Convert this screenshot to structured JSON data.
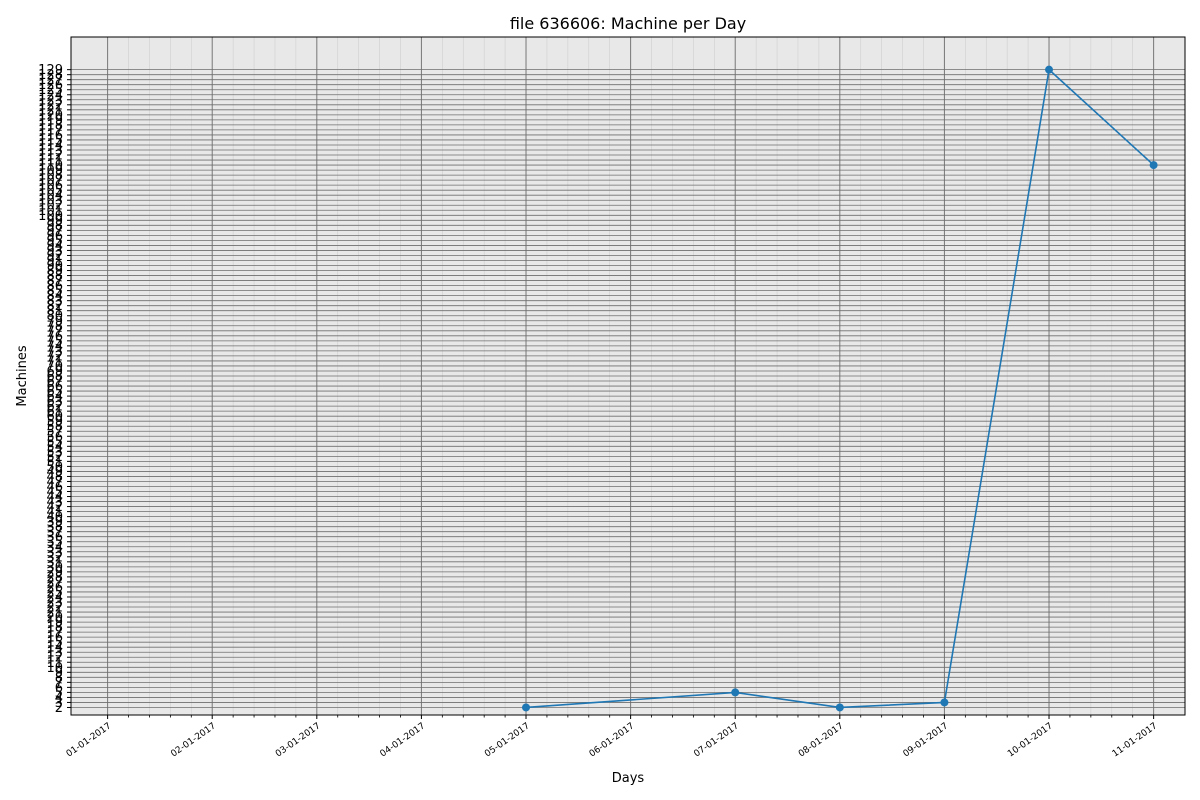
{
  "chart_data": {
    "type": "line",
    "title": "file 636606: Machine per Day",
    "xlabel": "Days",
    "ylabel": "Machines",
    "x_ticks": [
      "01-01-2017",
      "02-01-2017",
      "03-01-2017",
      "04-01-2017",
      "05-01-2017",
      "06-01-2017",
      "07-01-2017",
      "08-01-2017",
      "09-01-2017",
      "10-01-2017",
      "11-01-2017"
    ],
    "y_ticks": [
      2,
      3,
      4,
      5,
      6,
      7,
      8,
      9,
      10,
      11,
      12,
      13,
      14,
      15,
      16,
      17,
      18,
      19,
      20,
      21,
      22,
      23,
      24,
      25,
      26,
      27,
      28,
      29,
      30,
      31,
      32,
      33,
      34,
      35,
      36,
      37,
      38,
      39,
      40,
      41,
      42,
      43,
      44,
      45,
      46,
      47,
      48,
      49,
      50,
      51,
      52,
      53,
      54,
      55,
      56,
      57,
      58,
      59,
      60,
      61,
      62,
      63,
      64,
      65,
      66,
      67,
      68,
      69,
      70,
      71,
      72,
      73,
      74,
      75,
      76,
      77,
      78,
      79,
      80,
      81,
      82,
      83,
      84,
      85,
      86,
      87,
      88,
      89,
      90,
      91,
      92,
      93,
      94,
      95,
      96,
      97,
      98,
      99,
      100,
      101,
      102,
      103,
      104,
      105,
      106,
      107,
      108,
      109,
      110,
      111,
      112,
      113,
      114,
      115,
      116,
      117,
      118,
      119,
      120,
      121,
      122,
      123,
      124,
      125,
      126,
      127,
      128,
      129
    ],
    "series": [
      {
        "color": "#1f77b4",
        "x": [
          "05-01-2017",
          "07-01-2017",
          "08-01-2017",
          "09-01-2017",
          "10-01-2017",
          "11-01-2017"
        ],
        "y": [
          2,
          5,
          2,
          3,
          129,
          110
        ]
      }
    ],
    "ylim": [
      0.5,
      135.5
    ],
    "grid": true,
    "plot_background": "#e8e8e8"
  }
}
